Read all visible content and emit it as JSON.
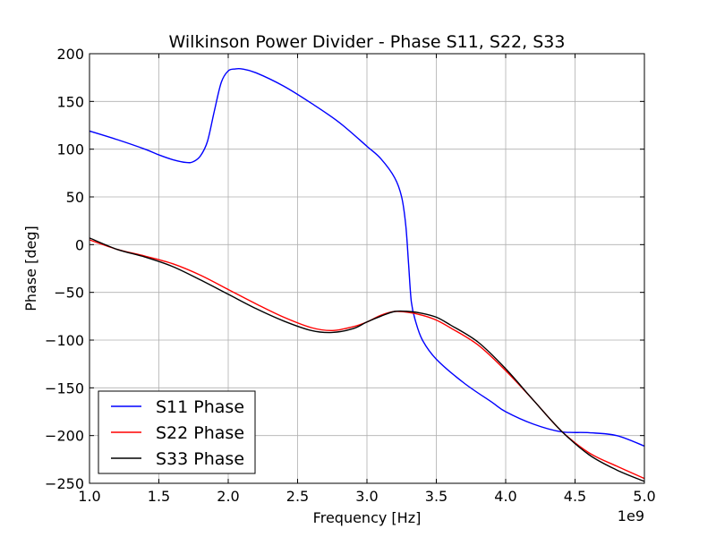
{
  "chart_data": {
    "type": "line",
    "title": "Wilkinson Power Divider - Phase S11, S22, S33",
    "xlabel": "Frequency [Hz]",
    "ylabel": "Phase [deg]",
    "x_offset_label": "1e9",
    "xlim": [
      1.0,
      5.0
    ],
    "ylim": [
      -250,
      200
    ],
    "xticks": [
      1.0,
      1.5,
      2.0,
      2.5,
      3.0,
      3.5,
      4.0,
      4.5,
      5.0
    ],
    "xtick_labels": [
      "1.0",
      "1.5",
      "2.0",
      "2.5",
      "3.0",
      "3.5",
      "4.0",
      "4.5",
      "5.0"
    ],
    "yticks": [
      -250,
      -200,
      -150,
      -100,
      -50,
      0,
      50,
      100,
      150,
      200
    ],
    "ytick_labels": [
      "−250",
      "−200",
      "−150",
      "−100",
      "−50",
      "0",
      "50",
      "100",
      "150",
      "200"
    ],
    "grid": true,
    "legend_position": "lower-left",
    "series": [
      {
        "name": "S11 Phase",
        "color": "#0000ff",
        "x": [
          1.0,
          1.2,
          1.4,
          1.5,
          1.6,
          1.7,
          1.75,
          1.8,
          1.85,
          1.9,
          1.95,
          2.0,
          2.05,
          2.1,
          2.2,
          2.4,
          2.6,
          2.8,
          3.0,
          3.1,
          3.2,
          3.25,
          3.28,
          3.3,
          3.32,
          3.35,
          3.4,
          3.5,
          3.7,
          3.9,
          4.0,
          4.2,
          4.4,
          4.6,
          4.8,
          5.0
        ],
        "y": [
          119,
          110,
          100,
          94,
          89,
          86,
          87,
          93,
          108,
          140,
          170,
          182,
          184,
          184,
          180,
          166,
          148,
          128,
          103,
          90,
          70,
          50,
          20,
          -20,
          -60,
          -80,
          -100,
          -120,
          -145,
          -165,
          -175,
          -188,
          -196,
          -197,
          -200,
          -211
        ]
      },
      {
        "name": "S22 Phase",
        "color": "#ff0000",
        "x": [
          1.0,
          1.2,
          1.4,
          1.6,
          1.8,
          2.0,
          2.2,
          2.4,
          2.6,
          2.75,
          2.9,
          3.0,
          3.1,
          3.2,
          3.3,
          3.4,
          3.5,
          3.6,
          3.8,
          4.0,
          4.2,
          4.4,
          4.6,
          4.8,
          5.0
        ],
        "y": [
          5,
          -5,
          -12,
          -20,
          -32,
          -47,
          -62,
          -76,
          -87,
          -90,
          -86,
          -81,
          -74,
          -70,
          -71,
          -74,
          -79,
          -87,
          -105,
          -132,
          -163,
          -195,
          -218,
          -232,
          -245
        ]
      },
      {
        "name": "S33 Phase",
        "color": "#000000",
        "x": [
          1.0,
          1.2,
          1.4,
          1.6,
          1.8,
          2.0,
          2.2,
          2.4,
          2.6,
          2.75,
          2.9,
          3.0,
          3.1,
          3.2,
          3.3,
          3.4,
          3.5,
          3.6,
          3.8,
          4.0,
          4.2,
          4.4,
          4.6,
          4.8,
          5.0
        ],
        "y": [
          7,
          -5,
          -13,
          -23,
          -37,
          -52,
          -67,
          -80,
          -90,
          -92,
          -88,
          -81,
          -75,
          -70,
          -70,
          -72,
          -76,
          -84,
          -102,
          -130,
          -163,
          -195,
          -220,
          -236,
          -248
        ]
      }
    ]
  }
}
